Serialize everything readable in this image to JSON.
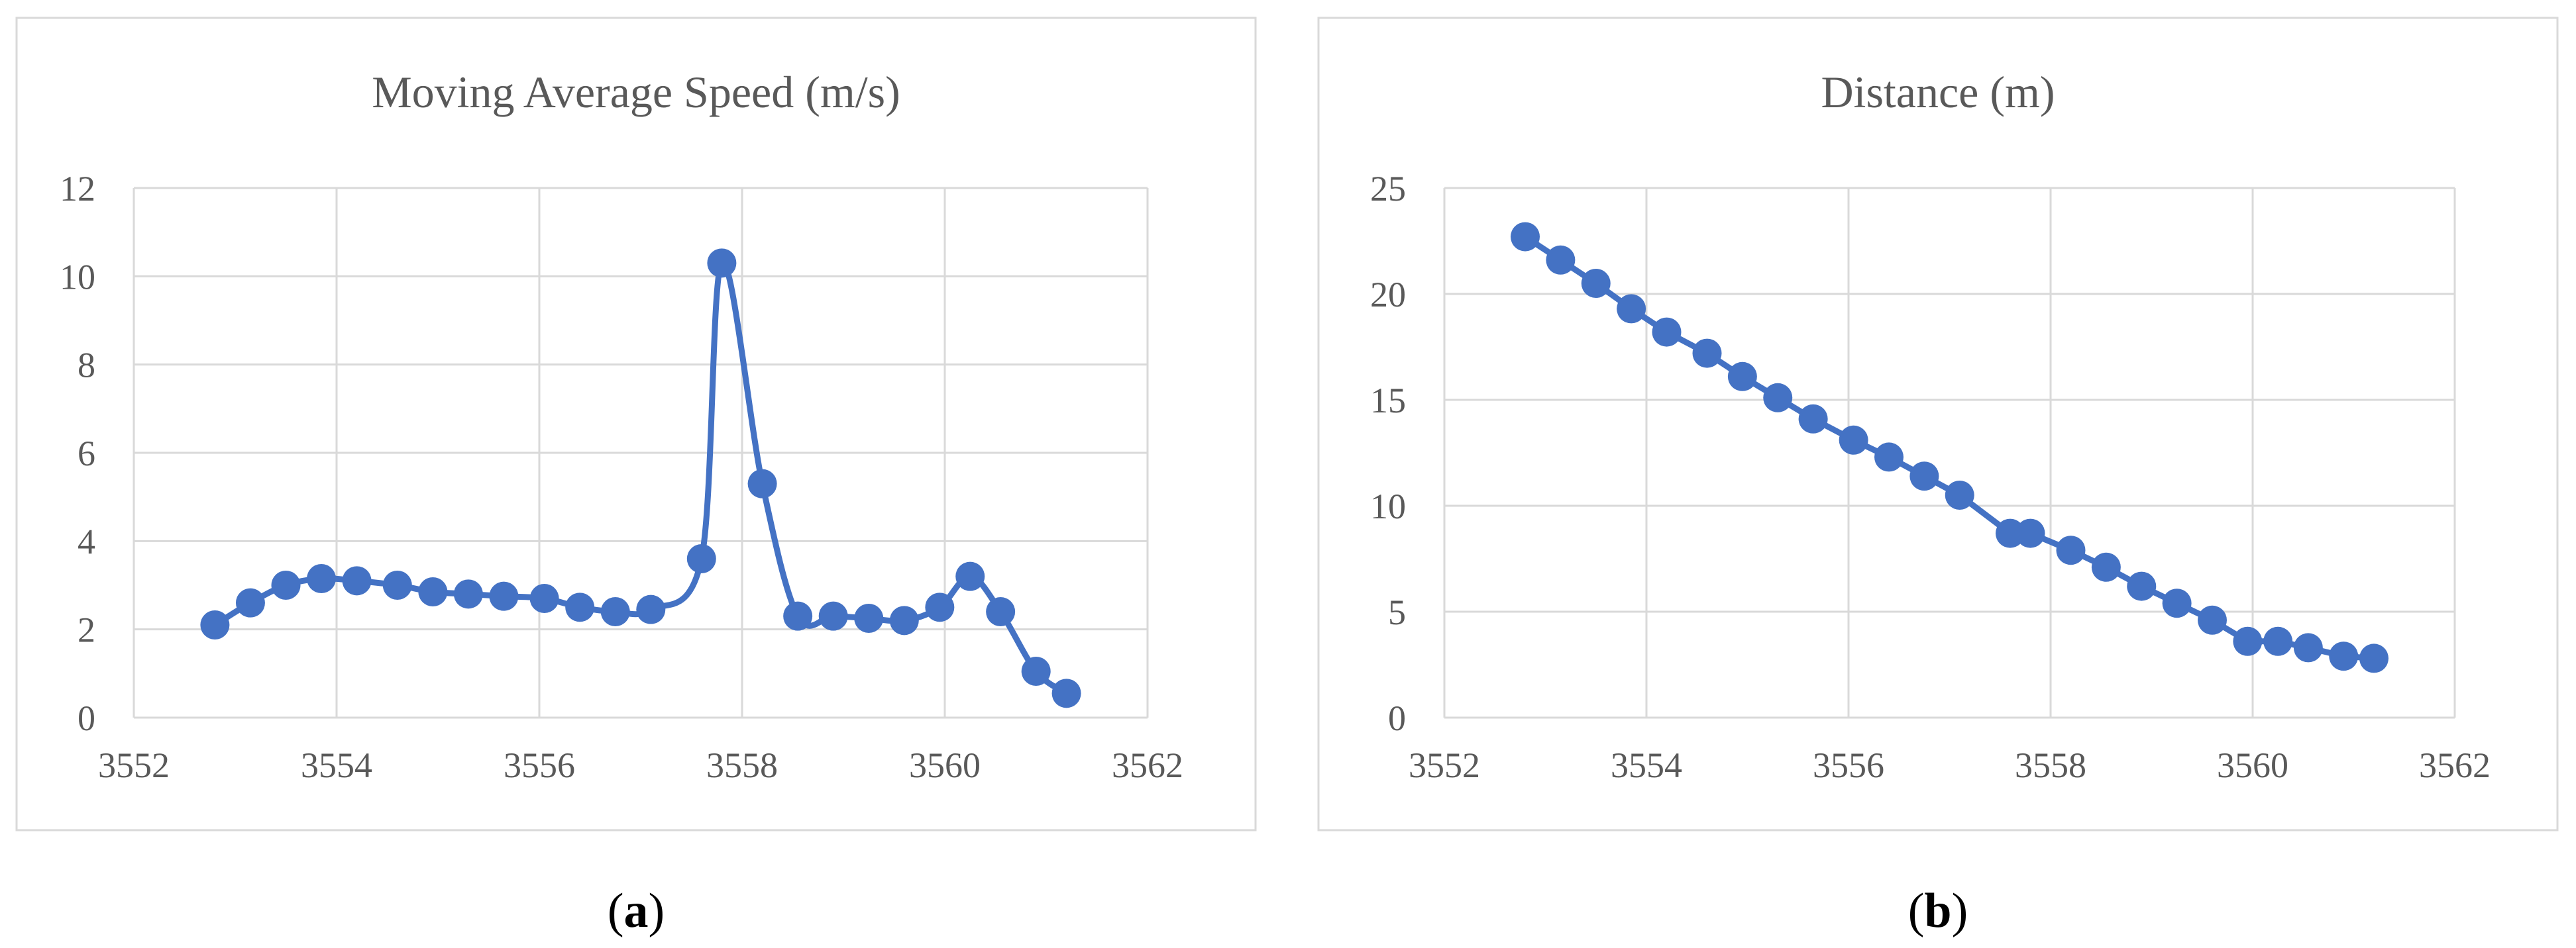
{
  "figure": {
    "colors": {
      "series": "#4472C4",
      "grid": "#D9D9D9",
      "frame": "#D9D9D9",
      "text": "#595959"
    }
  },
  "chart_data": [
    {
      "type": "line",
      "title": "Moving Average Speed (m/s)",
      "caption_letter": "a",
      "smooth": true,
      "markers": true,
      "grid": true,
      "legend": "none",
      "xlim": [
        3552,
        3562
      ],
      "ylim": [
        0,
        12
      ],
      "xticks": [
        "3552",
        "3554",
        "3556",
        "3558",
        "3560",
        "3562"
      ],
      "yticks": [
        "0",
        "2",
        "4",
        "6",
        "8",
        "10",
        "12"
      ],
      "x": [
        3552.8,
        3553.15,
        3553.5,
        3553.85,
        3554.2,
        3554.6,
        3554.95,
        3555.3,
        3555.65,
        3556.05,
        3556.4,
        3556.75,
        3557.1,
        3557.6,
        3557.8,
        3558.2,
        3558.55,
        3558.9,
        3559.25,
        3559.6,
        3559.95,
        3560.25,
        3560.55,
        3560.9,
        3561.2
      ],
      "y": [
        2.1,
        2.6,
        3.0,
        3.15,
        3.1,
        3.0,
        2.85,
        2.8,
        2.75,
        2.7,
        2.5,
        2.4,
        2.45,
        3.6,
        10.3,
        5.3,
        2.3,
        2.3,
        2.25,
        2.2,
        2.5,
        3.2,
        2.4,
        1.05,
        0.55
      ]
    },
    {
      "type": "line",
      "title": "Distance (m)",
      "caption_letter": "b",
      "smooth": false,
      "markers": true,
      "grid": true,
      "legend": "none",
      "xlim": [
        3552,
        3562
      ],
      "ylim": [
        0,
        25
      ],
      "xticks": [
        "3552",
        "3554",
        "3556",
        "3558",
        "3560",
        "3562"
      ],
      "yticks": [
        "0",
        "5",
        "10",
        "15",
        "20",
        "25"
      ],
      "x": [
        3552.8,
        3553.15,
        3553.5,
        3553.85,
        3554.2,
        3554.6,
        3554.95,
        3555.3,
        3555.65,
        3556.05,
        3556.4,
        3556.75,
        3557.1,
        3557.6,
        3557.8,
        3558.2,
        3558.55,
        3558.9,
        3559.25,
        3559.6,
        3559.95,
        3560.25,
        3560.55,
        3560.9,
        3561.2
      ],
      "y": [
        22.7,
        21.6,
        20.5,
        19.3,
        18.2,
        17.2,
        16.1,
        15.1,
        14.1,
        13.1,
        12.3,
        11.4,
        10.5,
        8.7,
        8.7,
        7.9,
        7.1,
        6.2,
        5.4,
        4.6,
        3.6,
        3.6,
        3.3,
        2.9,
        2.8
      ]
    }
  ]
}
